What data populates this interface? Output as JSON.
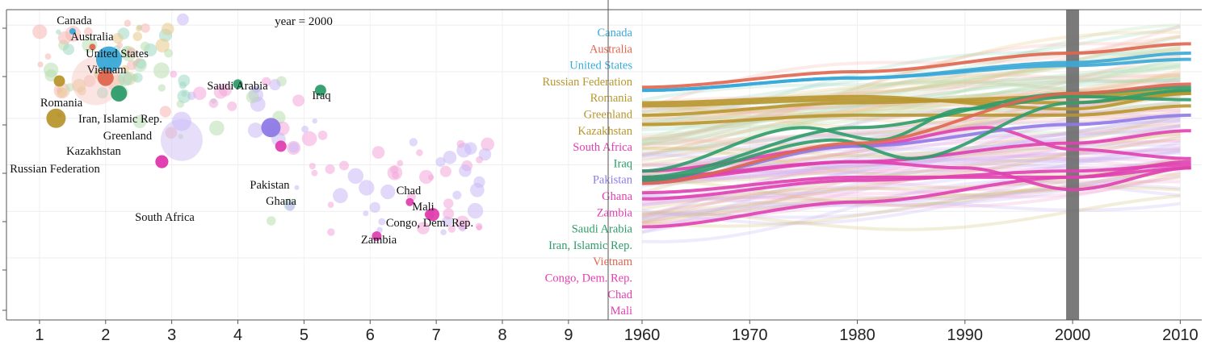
{
  "chart_data": [
    {
      "type": "scatter",
      "annotation": "year = 2000",
      "xlim": [
        0.5,
        9.6
      ],
      "ylim": [
        0,
        100
      ],
      "x_ticks": [
        1,
        2,
        3,
        4,
        5,
        6,
        7,
        8,
        9
      ],
      "highlighted": [
        {
          "label": "Canada",
          "x": 1.5,
          "y": 93,
          "size": 4,
          "color": "#3aa9d8"
        },
        {
          "label": "Australia",
          "x": 1.8,
          "y": 88,
          "size": 4,
          "color": "#e0664f"
        },
        {
          "label": "United States",
          "x": 2.05,
          "y": 84,
          "size": 16,
          "color": "#3aa9d8"
        },
        {
          "label": "Vietnam",
          "x": 2.0,
          "y": 78,
          "size": 10,
          "color": "#e0664f"
        },
        {
          "label": "Saudi Arabia",
          "x": 4.0,
          "y": 76,
          "size": 6,
          "color": "#2e9c6a"
        },
        {
          "label": "Iraq",
          "x": 5.25,
          "y": 74,
          "size": 7,
          "color": "#2e9c6a"
        },
        {
          "label": "Romania",
          "x": 1.3,
          "y": 77,
          "size": 7,
          "color": "#b8962e"
        },
        {
          "label": "Iran, Islamic Rep.",
          "x": 2.2,
          "y": 73,
          "size": 10,
          "color": "#2e9c6a"
        },
        {
          "label": "Greenland",
          "x": 1.3,
          "y": 66,
          "size": 3,
          "color": "#b8962e"
        },
        {
          "label": "Kazakhstan",
          "x": 1.25,
          "y": 65,
          "size": 12,
          "color": "#b8962e"
        },
        {
          "label": "Russian Federation",
          "x": 2.85,
          "y": 51,
          "size": 8,
          "color": "#e040b0"
        },
        {
          "label": "Pakistan",
          "x": 4.5,
          "y": 62,
          "size": 12,
          "color": "#8f7ae8"
        },
        {
          "label": "Ghana",
          "x": 4.65,
          "y": 56,
          "size": 7,
          "color": "#e040b0"
        },
        {
          "label": "South Africa",
          "x": 2.85,
          "y": 51,
          "size": 8,
          "color": "#e040b0"
        },
        {
          "label": "Chad",
          "x": 6.6,
          "y": 38,
          "size": 5,
          "color": "#e040b0"
        },
        {
          "label": "Mali",
          "x": 6.9,
          "y": 34,
          "size": 6,
          "color": "#e040b0"
        },
        {
          "label": "Congo, Dem. Rep.",
          "x": 6.95,
          "y": 34,
          "size": 8,
          "color": "#e040b0"
        },
        {
          "label": "Zambia",
          "x": 6.1,
          "y": 27,
          "size": 6,
          "color": "#e040b0"
        }
      ]
    },
    {
      "type": "line",
      "xlim": [
        1960,
        2012
      ],
      "ylim": [
        0,
        100
      ],
      "x_ticks": [
        1960,
        1970,
        1980,
        1990,
        2000,
        2010
      ],
      "marker_year": 2000,
      "series": [
        {
          "name": "Canada",
          "color": "#3aa9d8",
          "values": [
            [
              1960,
              74
            ],
            [
              1980,
              78
            ],
            [
              2000,
              83
            ],
            [
              2011,
              86
            ]
          ]
        },
        {
          "name": "Australia",
          "color": "#e0664f",
          "values": [
            [
              1960,
              75
            ],
            [
              1980,
              80
            ],
            [
              2000,
              86
            ],
            [
              2011,
              89
            ]
          ]
        },
        {
          "name": "United States",
          "color": "#3aa9d8",
          "values": [
            [
              1960,
              74
            ],
            [
              1980,
              78
            ],
            [
              2000,
              82
            ],
            [
              2011,
              84
            ]
          ]
        },
        {
          "name": "Russian Federation",
          "color": "#b8962e",
          "values": [
            [
              1960,
              70
            ],
            [
              1980,
              72
            ],
            [
              2000,
              68
            ],
            [
              2011,
              73
            ]
          ]
        },
        {
          "name": "Romania",
          "color": "#b8962e",
          "values": [
            [
              1960,
              69
            ],
            [
              1980,
              71
            ],
            [
              2000,
              70
            ],
            [
              2011,
              73
            ]
          ]
        },
        {
          "name": "Greenland",
          "color": "#b8962e",
          "values": [
            [
              1960,
              66
            ],
            [
              1980,
              70
            ],
            [
              2000,
              72
            ],
            [
              2011,
              74
            ]
          ]
        },
        {
          "name": "Kazakhstan",
          "color": "#b8962e",
          "values": [
            [
              1960,
              63
            ],
            [
              1980,
              66
            ],
            [
              2000,
              66
            ],
            [
              2011,
              69
            ]
          ]
        },
        {
          "name": "South Africa",
          "color": "#e040b0",
          "values": [
            [
              1960,
              48
            ],
            [
              1980,
              56
            ],
            [
              1992,
              62
            ],
            [
              2000,
              55
            ],
            [
              2011,
              52
            ]
          ]
        },
        {
          "name": "Iraq",
          "color": "#2e9c6a",
          "values": [
            [
              1960,
              48
            ],
            [
              1975,
              62
            ],
            [
              1982,
              58
            ],
            [
              1990,
              68
            ],
            [
              2000,
              72
            ],
            [
              2011,
              71
            ]
          ]
        },
        {
          "name": "Pakistan",
          "color": "#8f7ae8",
          "values": [
            [
              1960,
              44
            ],
            [
              1980,
              56
            ],
            [
              2000,
              63
            ],
            [
              2011,
              66
            ]
          ]
        },
        {
          "name": "Ghana",
          "color": "#e040b0",
          "values": [
            [
              1960,
              46
            ],
            [
              1980,
              51
            ],
            [
              2000,
              57
            ],
            [
              2011,
              61
            ]
          ]
        },
        {
          "name": "Zambia",
          "color": "#e040b0",
          "values": [
            [
              1960,
              45
            ],
            [
              1980,
              51
            ],
            [
              1990,
              49
            ],
            [
              2000,
              42
            ],
            [
              2011,
              49
            ]
          ]
        },
        {
          "name": "Saudi Arabia",
          "color": "#2e9c6a",
          "values": [
            [
              1960,
              46
            ],
            [
              1980,
              62
            ],
            [
              2000,
              73
            ],
            [
              2011,
              75
            ]
          ]
        },
        {
          "name": "Iran, Islamic Rep.",
          "color": "#2e9c6a",
          "values": [
            [
              1960,
              45
            ],
            [
              1978,
              58
            ],
            [
              1985,
              52
            ],
            [
              2000,
              70
            ],
            [
              2011,
              74
            ]
          ]
        },
        {
          "name": "Vietnam",
          "color": "#e0664f",
          "values": [
            [
              1960,
              44
            ],
            [
              1980,
              57
            ],
            [
              2000,
              73
            ],
            [
              2011,
              76
            ]
          ]
        },
        {
          "name": "Congo, Dem. Rep.",
          "color": "#e040b0",
          "values": [
            [
              1960,
              41
            ],
            [
              1980,
              46
            ],
            [
              2000,
              46
            ],
            [
              2011,
              49
            ]
          ]
        },
        {
          "name": "Chad",
          "color": "#e040b0",
          "values": [
            [
              1960,
              39
            ],
            [
              1980,
              45
            ],
            [
              2000,
              48
            ],
            [
              2011,
              50
            ]
          ]
        },
        {
          "name": "Mali",
          "color": "#e040b0",
          "values": [
            [
              1960,
              30
            ],
            [
              1980,
              38
            ],
            [
              2000,
              46
            ],
            [
              2011,
              51
            ]
          ]
        }
      ]
    }
  ]
}
